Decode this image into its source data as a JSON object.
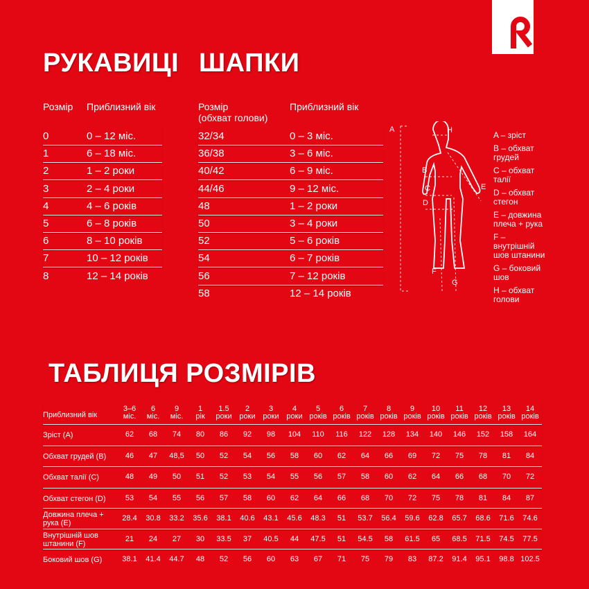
{
  "brand": {
    "logo_letter": "R",
    "colors": {
      "background": "#e30613",
      "text": "#ffffff"
    }
  },
  "gloves": {
    "title": "РУКАВИЦІ",
    "headers": [
      "Розмір",
      "Приблизний вік"
    ],
    "rows": [
      [
        "0",
        "0 – 12 міс."
      ],
      [
        "1",
        "6 – 18 міс."
      ],
      [
        "2",
        "1 – 2 роки"
      ],
      [
        "3",
        "2 – 4 роки"
      ],
      [
        "4",
        "4 – 6 років"
      ],
      [
        "5",
        "6 – 8 років"
      ],
      [
        "6",
        "8 – 10 років"
      ],
      [
        "7",
        "10 – 12 років"
      ],
      [
        "8",
        "12 – 14 років"
      ]
    ]
  },
  "hats": {
    "title": "ШАПКИ",
    "headers": [
      "Розмір\n(обхват голови)",
      "Приблизний вік"
    ],
    "rows": [
      [
        "32/34",
        "0 – 3 міс."
      ],
      [
        "36/38",
        "3 – 6 міс."
      ],
      [
        "40/42",
        "6 – 9 міс."
      ],
      [
        "44/46",
        "9 – 12 міс."
      ],
      [
        "48",
        "1 – 2 роки"
      ],
      [
        "50",
        "3 – 4 роки"
      ],
      [
        "52",
        "5 – 6 років"
      ],
      [
        "54",
        "6 – 7 років"
      ],
      [
        "56",
        "7 – 12 років"
      ],
      [
        "58",
        "12 – 14 років"
      ]
    ]
  },
  "figure": {
    "markers": [
      "A",
      "B",
      "C",
      "D",
      "E",
      "F",
      "G",
      "H"
    ],
    "legend": [
      "A – зріст",
      "B – обхват грудей",
      "C – обхват талії",
      "D – обхват стегон",
      "E – довжина плеча + рука",
      "F – внутрішній шов штанини",
      "G – боковий шов",
      "H – обхват голови"
    ]
  },
  "size_table": {
    "title": "ТАБЛИЦЯ РОЗМІРІВ",
    "header_label": "Приблизний вік",
    "columns": [
      [
        "3–6",
        "міс."
      ],
      [
        "6",
        "міс."
      ],
      [
        "9",
        "міс."
      ],
      [
        "1",
        "рік"
      ],
      [
        "1.5",
        "роки"
      ],
      [
        "2",
        "роки"
      ],
      [
        "3",
        "роки"
      ],
      [
        "4",
        "роки"
      ],
      [
        "5",
        "років"
      ],
      [
        "6",
        "років"
      ],
      [
        "7",
        "років"
      ],
      [
        "8",
        "років"
      ],
      [
        "9",
        "років"
      ],
      [
        "10",
        "років"
      ],
      [
        "11",
        "років"
      ],
      [
        "12",
        "років"
      ],
      [
        "13",
        "років"
      ],
      [
        "14",
        "років"
      ]
    ],
    "rows": [
      {
        "label": "Зріст (A)",
        "values": [
          "62",
          "68",
          "74",
          "80",
          "86",
          "92",
          "98",
          "104",
          "110",
          "116",
          "122",
          "128",
          "134",
          "140",
          "146",
          "152",
          "158",
          "164"
        ]
      },
      {
        "label": "Обхват грудей (B)",
        "values": [
          "46",
          "47",
          "48,5",
          "50",
          "52",
          "54",
          "56",
          "58",
          "60",
          "62",
          "64",
          "66",
          "69",
          "72",
          "75",
          "78",
          "81",
          "84"
        ]
      },
      {
        "label": "Обхват талії (C)",
        "values": [
          "48",
          "49",
          "50",
          "51",
          "52",
          "53",
          "54",
          "55",
          "56",
          "57",
          "58",
          "60",
          "62",
          "64",
          "66",
          "68",
          "70",
          "72"
        ]
      },
      {
        "label": "Обхват стегон (D)",
        "values": [
          "53",
          "54",
          "55",
          "56",
          "57",
          "58",
          "60",
          "62",
          "64",
          "66",
          "68",
          "70",
          "72",
          "75",
          "78",
          "81",
          "84",
          "87"
        ]
      },
      {
        "label": "Довжина плеча +\nрука (E)",
        "values": [
          "28.4",
          "30.8",
          "33.2",
          "35.6",
          "38.1",
          "40.6",
          "43.1",
          "45.6",
          "48.3",
          "51",
          "53.7",
          "56.4",
          "59.6",
          "62.8",
          "65.7",
          "68.6",
          "71.6",
          "74.6"
        ]
      },
      {
        "label": "Внутрішній шов\nштанини (F)",
        "values": [
          "21",
          "24",
          "27",
          "30",
          "33.5",
          "37",
          "40.5",
          "44",
          "47.5",
          "51",
          "54.5",
          "58",
          "61.5",
          "65",
          "68.5",
          "71.5",
          "74.5",
          "77.5"
        ]
      },
      {
        "label": "Боковий шов (G)",
        "values": [
          "38.1",
          "41.4",
          "44.7",
          "48",
          "52",
          "56",
          "60",
          "63",
          "67",
          "71",
          "75",
          "79",
          "83",
          "87.2",
          "91.4",
          "95.1",
          "98.8",
          "102.5"
        ]
      }
    ]
  }
}
